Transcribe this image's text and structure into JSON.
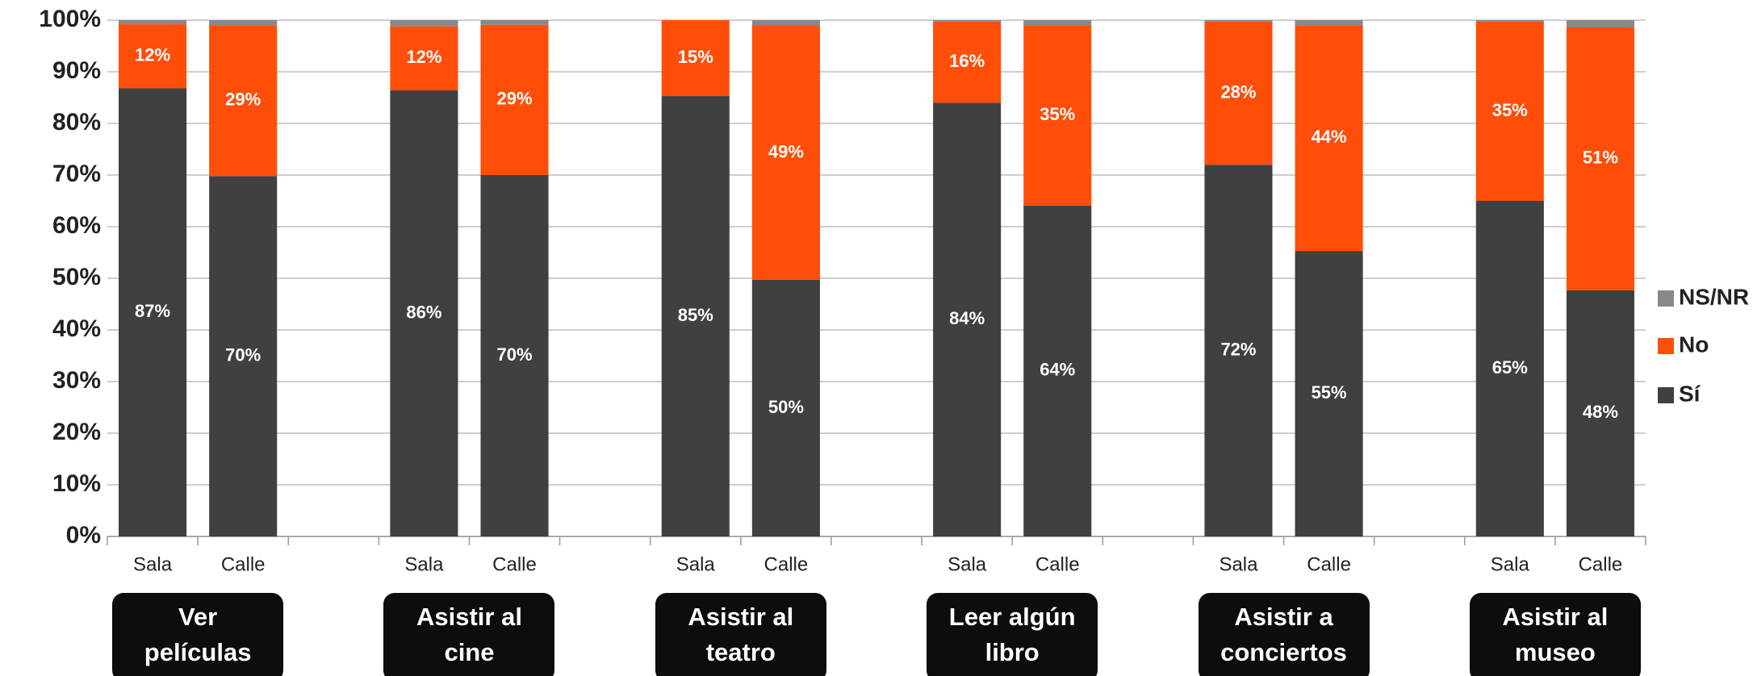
{
  "chart_data": {
    "type": "stacked_bar",
    "categories": [
      "Sala",
      "Calle",
      null,
      "Sala",
      "Calle",
      null,
      "Sala",
      "Calle",
      null,
      "Sala",
      "Calle",
      null,
      "Sala",
      "Calle",
      null,
      "Sala",
      "Calle"
    ],
    "groups": [
      "Ver\npelículas",
      "Asistir al\ncine",
      "Asistir al\nteatro",
      "Leer algún\nlibro",
      "Asistir a\nconciertos",
      "Asistir al\nmuseo"
    ],
    "series": [
      {
        "name": "Sí",
        "color": "#404040",
        "values": [
          86.8,
          69.8,
          null,
          86.4,
          70.0,
          null,
          85.3,
          49.7,
          null,
          84.0,
          64.1,
          null,
          72.0,
          55.3,
          null,
          65.0,
          47.7
        ],
        "value_labels": [
          "87%",
          "70%",
          null,
          "86%",
          "70%",
          null,
          "85%",
          "50%",
          null,
          "84%",
          "64%",
          null,
          "72%",
          "55%",
          null,
          "65%",
          "48%"
        ]
      },
      {
        "name": "No",
        "color": "#ff4e0a",
        "values": [
          12.4,
          29.2,
          null,
          12.4,
          29.1,
          null,
          14.7,
          49.2,
          null,
          15.7,
          34.9,
          null,
          27.7,
          43.7,
          null,
          34.7,
          50.9
        ],
        "value_labels": [
          "12%",
          "29%",
          null,
          "12%",
          "29%",
          null,
          "15%",
          "49%",
          null,
          "16%",
          "35%",
          null,
          "28%",
          "44%",
          null,
          "35%",
          "51%"
        ]
      },
      {
        "name": "NS/NR",
        "color": "#888888",
        "values": [
          0.8,
          1.0,
          null,
          1.2,
          0.9,
          null,
          0,
          1.1,
          null,
          0.3,
          1.0,
          null,
          0.3,
          1.0,
          null,
          0.3,
          1.4
        ]
      }
    ],
    "ylim": [
      0,
      100
    ],
    "yticks": [
      {
        "value": 0,
        "label": "0%"
      },
      {
        "value": 10,
        "label": "10%"
      },
      {
        "value": 20,
        "label": "20%"
      },
      {
        "value": 30,
        "label": "30%"
      },
      {
        "value": 40,
        "label": "40%"
      },
      {
        "value": 50,
        "label": "50%"
      },
      {
        "value": 60,
        "label": "60%"
      },
      {
        "value": 70,
        "label": "70%"
      },
      {
        "value": 80,
        "label": "80%"
      },
      {
        "value": 90,
        "label": "90%"
      },
      {
        "value": 100,
        "label": "100%"
      }
    ],
    "grid": true,
    "legend": "right"
  }
}
